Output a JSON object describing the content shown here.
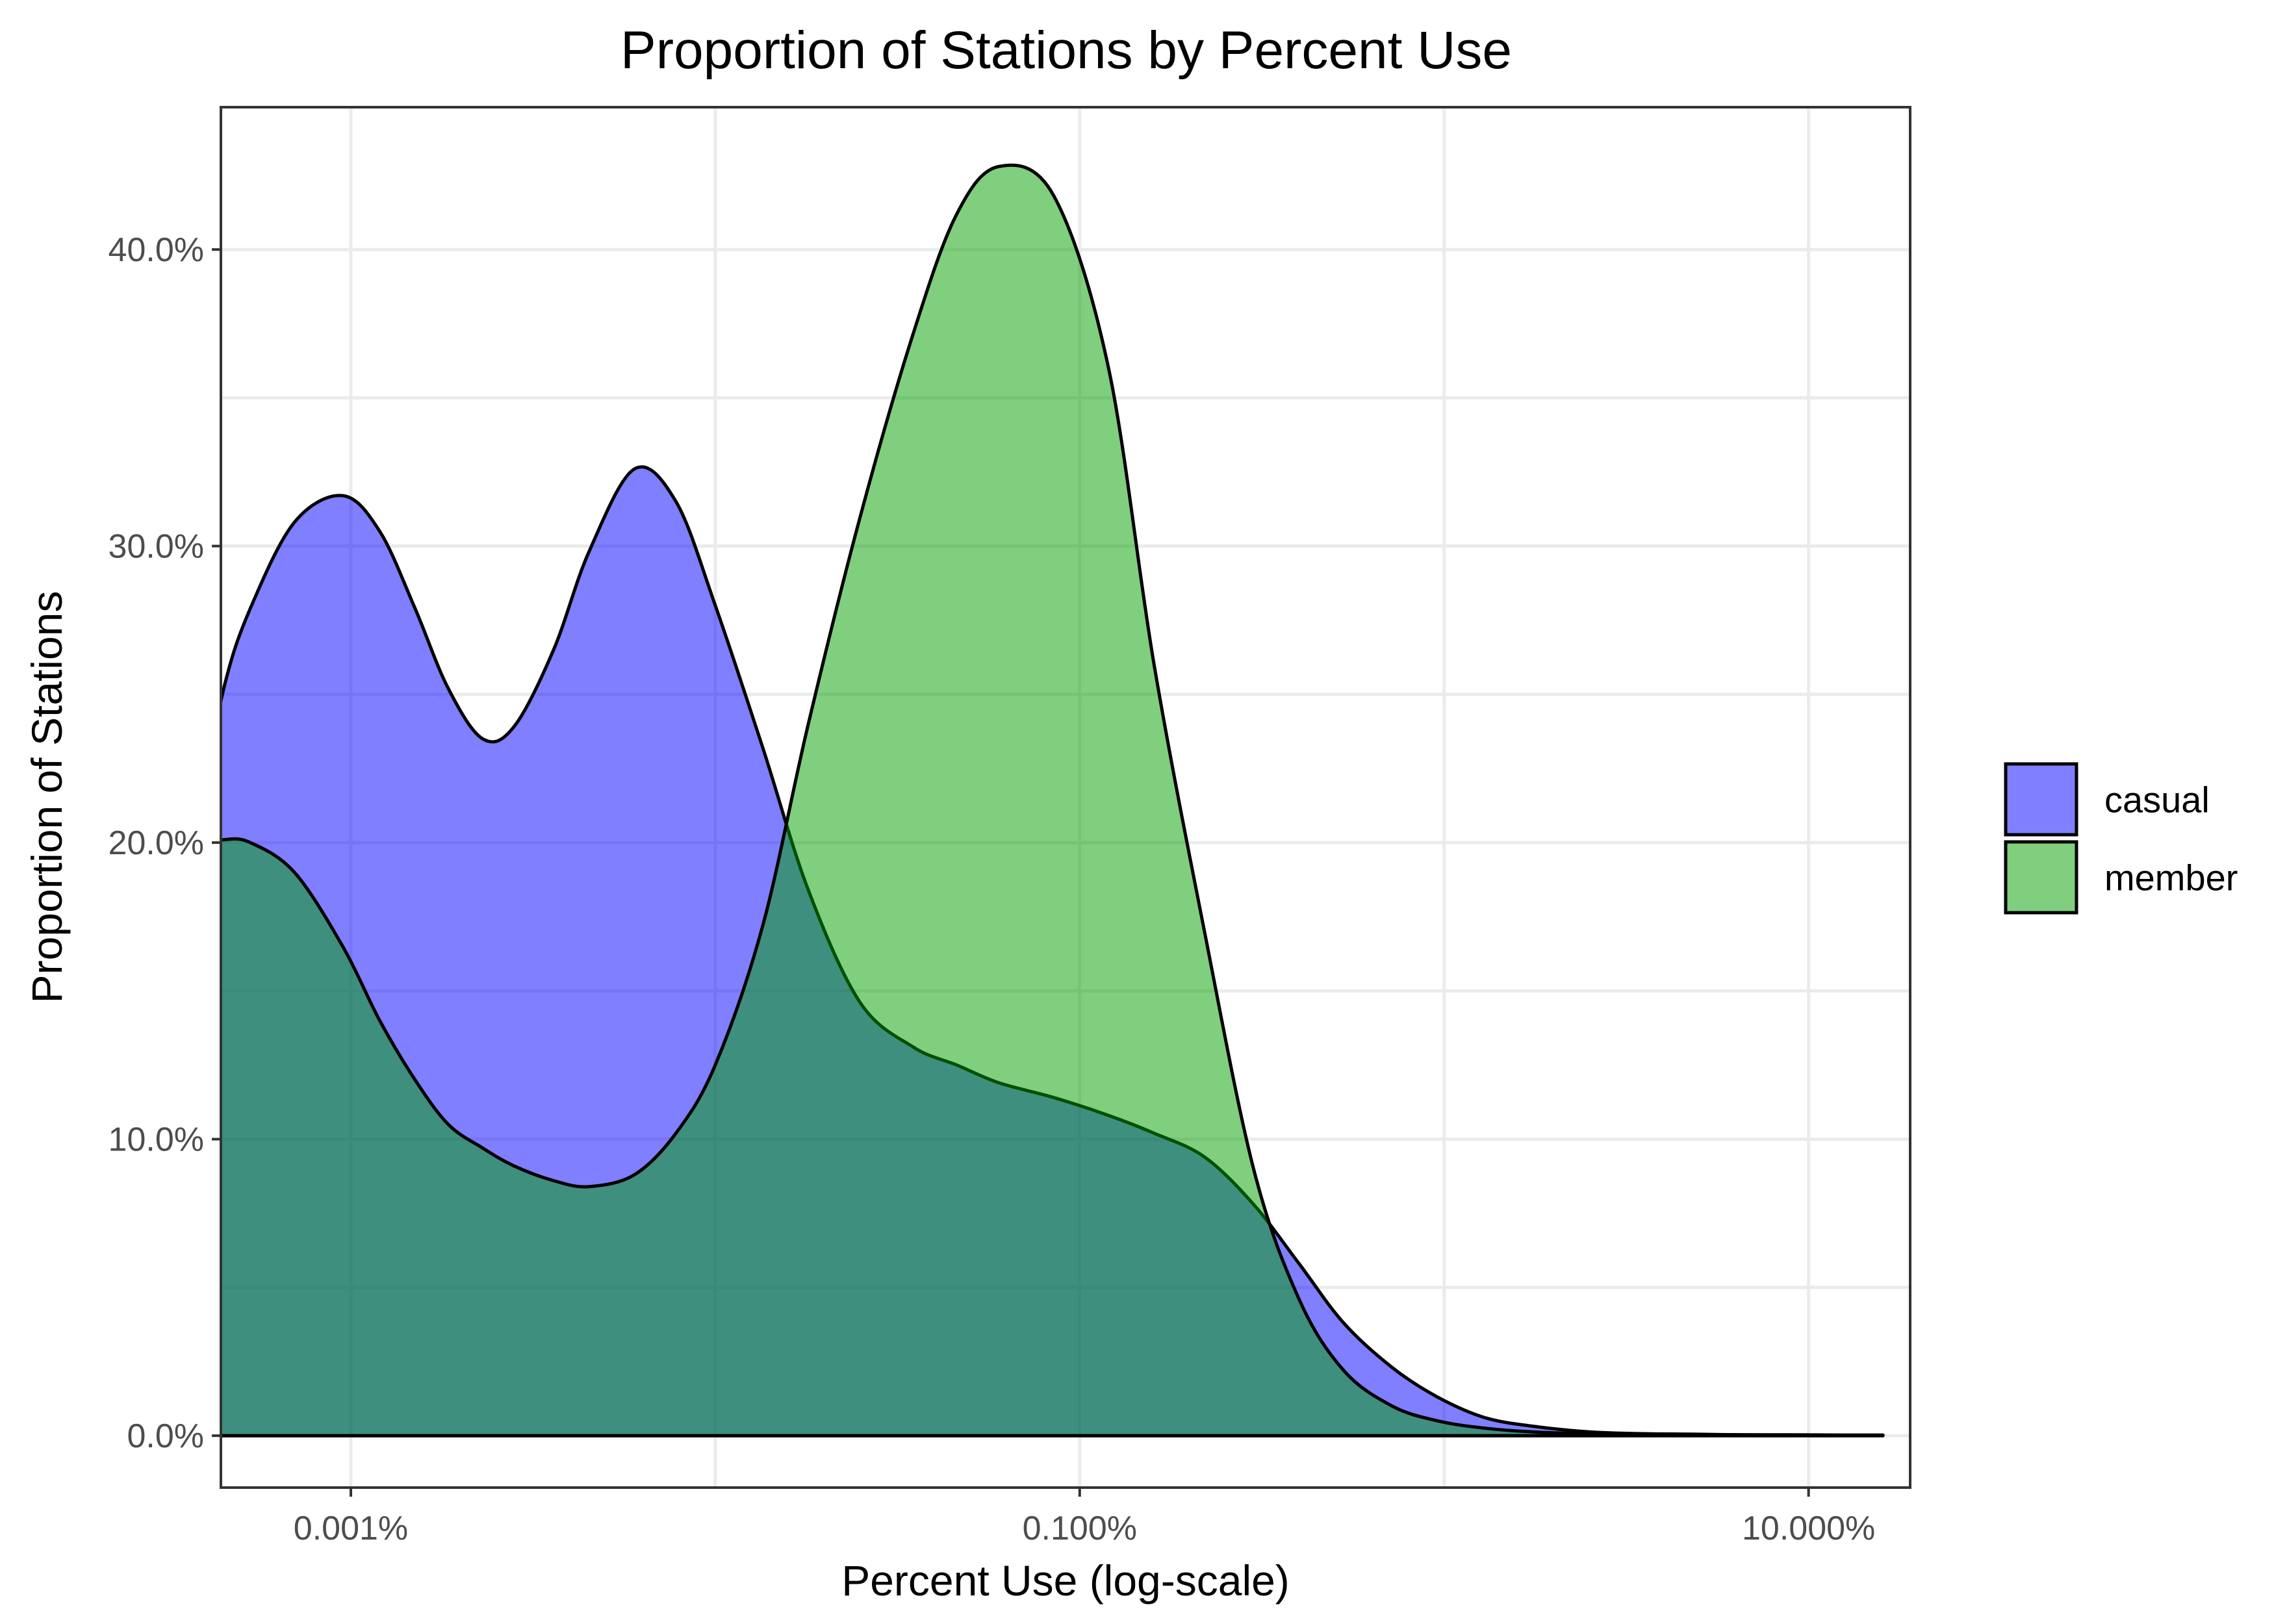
{
  "chart_data": {
    "type": "area",
    "title": "Proportion of Stations by Percent Use",
    "xlabel": "Percent Use (log-scale)",
    "ylabel": "Proportion of Stations",
    "x_scale": "log10",
    "xlim": [
      4.4e-06,
      0.19
    ],
    "ylim": [
      -0.0175,
      0.448
    ],
    "x_ticks": [
      {
        "value": 1e-05,
        "label": "0.001%"
      },
      {
        "value": 0.001,
        "label": "0.100%"
      },
      {
        "value": 0.1,
        "label": "10.000%"
      }
    ],
    "y_ticks": [
      {
        "value": 0.0,
        "label": "0.0%"
      },
      {
        "value": 0.1,
        "label": "10.0%"
      },
      {
        "value": 0.2,
        "label": "20.0%"
      },
      {
        "value": 0.3,
        "label": "30.0%"
      },
      {
        "value": 0.4,
        "label": "40.0%"
      }
    ],
    "grid": true,
    "legend_position": "right",
    "series": [
      {
        "name": "casual",
        "color": "#0000ff",
        "opacity": 0.5,
        "x": [
          2.8e-06,
          3.3e-06,
          3.9e-06,
          4.5e-06,
          5.3e-06,
          7e-06,
          9.5e-06,
          1.2e-05,
          1.5e-05,
          1.85e-05,
          2.3e-05,
          2.8e-05,
          3.6e-05,
          4.5e-05,
          6e-05,
          7.8e-05,
          0.0001,
          0.000135,
          0.00018,
          0.00025,
          0.00035,
          0.00046,
          0.0006,
          0.00085,
          0.0012,
          0.0016,
          0.0022,
          0.003,
          0.004,
          0.0053,
          0.0072,
          0.0096,
          0.013,
          0.018,
          0.025,
          0.034,
          0.048,
          0.065,
          0.09,
          0.125,
          0.16
        ],
        "y": [
          0.144,
          0.175,
          0.214,
          0.253,
          0.279,
          0.308,
          0.317,
          0.305,
          0.279,
          0.252,
          0.235,
          0.239,
          0.265,
          0.298,
          0.326,
          0.315,
          0.28,
          0.232,
          0.184,
          0.146,
          0.131,
          0.125,
          0.119,
          0.114,
          0.108,
          0.102,
          0.094,
          0.078,
          0.058,
          0.038,
          0.023,
          0.013,
          0.006,
          0.003,
          0.0013,
          0.0007,
          0.0005,
          0.0003,
          0.0002,
          0.0002,
          0.0002
        ]
      },
      {
        "name": "member",
        "color": "#00a000",
        "opacity": 0.5,
        "x": [
          2.8e-06,
          3.3e-06,
          3.9e-06,
          4.5e-06,
          5.3e-06,
          7e-06,
          9.5e-06,
          1.2e-05,
          1.5e-05,
          1.85e-05,
          2.3e-05,
          2.8e-05,
          3.6e-05,
          4.5e-05,
          6e-05,
          7.8e-05,
          0.0001,
          0.000135,
          0.00018,
          0.00025,
          0.00035,
          0.00046,
          0.0006,
          0.00085,
          0.0012,
          0.0016,
          0.0022,
          0.003,
          0.004,
          0.0053,
          0.0072,
          0.0096,
          0.013,
          0.018,
          0.025,
          0.034,
          0.048,
          0.065,
          0.09,
          0.125,
          0.16
        ],
        "y": [
          0.172,
          0.19,
          0.199,
          0.201,
          0.2,
          0.19,
          0.165,
          0.14,
          0.12,
          0.105,
          0.097,
          0.091,
          0.086,
          0.084,
          0.088,
          0.102,
          0.125,
          0.172,
          0.24,
          0.31,
          0.372,
          0.412,
          0.428,
          0.418,
          0.36,
          0.26,
          0.17,
          0.09,
          0.046,
          0.022,
          0.01,
          0.005,
          0.0025,
          0.0012,
          0.0007,
          0.0005,
          0.0004,
          0.0003,
          0.0003,
          0.0002,
          0.0002
        ]
      }
    ]
  }
}
